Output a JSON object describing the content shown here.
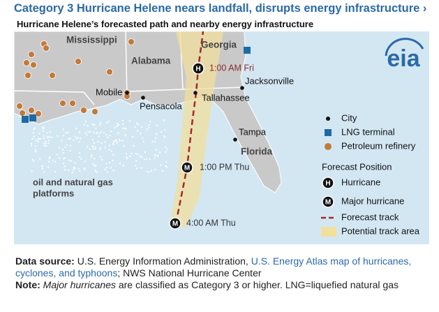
{
  "header": {
    "title": "Category 3 Hurricane Helene nears landfall, disrupts energy infrastructure ›",
    "subtitle": "Hurricane Helene’s forecasted path and nearby energy infrastructure"
  },
  "map": {
    "states": [
      "Mississippi",
      "Alabama",
      "Georgia",
      "Florida"
    ],
    "cities": [
      "Mobile",
      "Pensacola",
      "Tallahassee",
      "Jacksonville",
      "Tampa"
    ],
    "forecast_positions": [
      "1:00 AM Fri",
      "1:00 PM Thu",
      "4:00 AM Thu"
    ],
    "platforms_label": [
      "oil and natural gas",
      "platforms"
    ],
    "logo": "eia",
    "icon_letters": {
      "hurricane": "H",
      "major": "M"
    }
  },
  "legend": {
    "items": [
      "City",
      "LNG terminal",
      "Petroleum refinery"
    ],
    "forecast_title": "Forecast Position",
    "forecast_items": [
      "Hurricane",
      "Major hurricane",
      "Forecast track",
      "Potential track area"
    ]
  },
  "footer": {
    "source_label": "Data source:",
    "source_text": "U.S. Energy Information Administration,",
    "source_link": "U.S. Energy Atlas map of hurricanes, cyclones, and typhoons",
    "source_rest": "; NWS National Hurricane Center",
    "note_label": "Note:",
    "note_italic": "Major hurricanes",
    "note_text": "are classified as Category 3 or higher. LNG=liquefied natural gas"
  }
}
